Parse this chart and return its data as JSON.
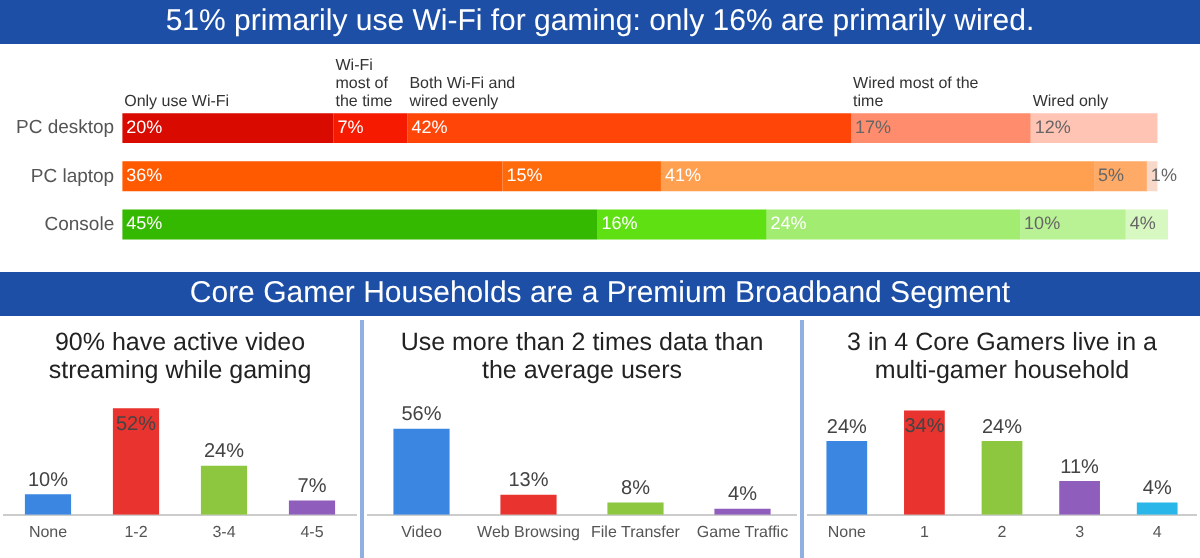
{
  "chart_data": [
    {
      "type": "bar",
      "title": "51% primarily use Wi-Fi for gaming:  only 16% are primarily wired.",
      "orientation": "horizontal",
      "stacked": true,
      "tick_labels": "y",
      "categories": [
        "PC desktop",
        "PC laptop",
        "Console"
      ],
      "series": [
        {
          "name": "Only use Wi-Fi",
          "colors": [
            "#d90a00",
            "#ff5a00",
            "#35b800"
          ],
          "values": [
            20,
            36,
            45
          ],
          "value_labels": [
            "20%",
            "36%",
            "45%"
          ]
        },
        {
          "name": "Wi-Fi most of the time",
          "colors": [
            "#f51a00",
            "#ff6a0a",
            "#5ee012"
          ],
          "values": [
            7,
            15,
            16
          ],
          "value_labels": [
            "7%",
            "15%",
            "16%"
          ]
        },
        {
          "name": "Both Wi-Fi and wired evenly",
          "colors": [
            "#ff4508",
            "#ffa050",
            "#a2ec72"
          ],
          "values": [
            42,
            41,
            24
          ],
          "value_labels": [
            "42%",
            "41%",
            "24%"
          ]
        },
        {
          "name": "Wired most of the time",
          "colors": [
            "#ff8c6c",
            "#ffaa66",
            "#b8f294"
          ],
          "values": [
            17,
            5,
            10
          ],
          "value_labels": [
            "17%",
            "5%",
            "10%"
          ]
        },
        {
          "name": "Wired only",
          "colors": [
            "#ffc4b4",
            "#f8d8c8",
            "#d8f8c2"
          ],
          "values": [
            12,
            1,
            4
          ],
          "value_labels": [
            "12%",
            "1%",
            "4%"
          ]
        }
      ]
    },
    {
      "type": "other",
      "title": "Core Gamer Households are a Premium Broadband Segment"
    },
    {
      "type": "bar",
      "title": "90% have active video streaming while gaming",
      "tick_labels": "x",
      "categories": [
        "None",
        "1-2",
        "3-4",
        "4-5"
      ],
      "values": [
        10,
        52,
        24,
        7
      ],
      "value_labels": [
        "10%",
        "52%",
        "24%",
        "7%"
      ],
      "colors": [
        "#3a86e0",
        "#e8332e",
        "#8dc63f",
        "#8f5dbb"
      ]
    },
    {
      "type": "bar",
      "title": "Use more than 2 times data than the average users",
      "tick_labels": "x",
      "categories": [
        "Video",
        "Web Browsing",
        "File Transfer",
        "Game Traffic"
      ],
      "values": [
        56,
        13,
        8,
        4
      ],
      "value_labels": [
        "56%",
        "13%",
        "8%",
        "4%"
      ],
      "colors": [
        "#3a86e0",
        "#e8332e",
        "#8dc63f",
        "#8f5dbb"
      ]
    },
    {
      "type": "bar",
      "title": "3 in 4 Core Gamers live in a multi-gamer household",
      "tick_labels": "x",
      "categories": [
        "None",
        "1",
        "2",
        "3",
        "4"
      ],
      "values": [
        24,
        34,
        24,
        11,
        4
      ],
      "value_labels": [
        "24%",
        "34%",
        "24%",
        "11%",
        "4%"
      ],
      "colors": [
        "#3a86e0",
        "#e8332e",
        "#8dc63f",
        "#8f5dbb",
        "#2ab6e8"
      ]
    }
  ]
}
